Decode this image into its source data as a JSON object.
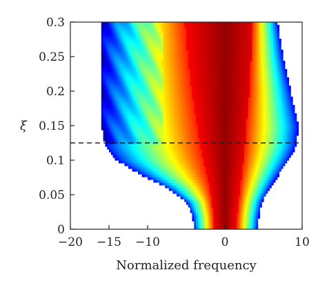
{
  "chart_data": {
    "type": "heatmap",
    "title": "",
    "xlabel": "Normalized frequency",
    "ylabel": "ξ",
    "xlim": [
      -20,
      10
    ],
    "ylim": [
      0,
      0.3
    ],
    "x_ticks": [
      -20,
      -15,
      -10,
      0,
      10
    ],
    "x_tick_labels": [
      "−20",
      "−15",
      "−10",
      "0",
      "10"
    ],
    "y_ticks": [
      0,
      0.05,
      0.1,
      0.15,
      0.2,
      0.25,
      0.3
    ],
    "y_tick_labels": [
      "0",
      "0.05",
      "0.1",
      "0.15",
      "0.2",
      "0.25",
      "0.3"
    ],
    "colormap": "jet",
    "background_color": "#ffffff",
    "reference_line": {
      "y": 0.125,
      "style": "dashed",
      "color": "#222222"
    },
    "spectral_envelope": [
      {
        "xi": 0.0,
        "left_edge": -4.0,
        "right_edge": 4.2,
        "red_left": -1.4,
        "red_right": 1.5
      },
      {
        "xi": 0.02,
        "left_edge": -4.2,
        "right_edge": 4.4,
        "red_left": -1.5,
        "red_right": 1.6
      },
      {
        "xi": 0.04,
        "left_edge": -5.0,
        "right_edge": 4.8,
        "red_left": -1.7,
        "red_right": 1.8
      },
      {
        "xi": 0.06,
        "left_edge": -7.5,
        "right_edge": 5.8,
        "red_left": -2.0,
        "red_right": 2.0
      },
      {
        "xi": 0.08,
        "left_edge": -11.0,
        "right_edge": 7.0,
        "red_left": -2.4,
        "red_right": 2.2
      },
      {
        "xi": 0.1,
        "left_edge": -14.0,
        "right_edge": 8.2,
        "red_left": -2.8,
        "red_right": 2.4
      },
      {
        "xi": 0.12,
        "left_edge": -15.5,
        "right_edge": 9.2,
        "red_left": -3.2,
        "red_right": 2.6
      },
      {
        "xi": 0.15,
        "left_edge": -16.0,
        "right_edge": 9.5,
        "red_left": -3.6,
        "red_right": 2.8
      },
      {
        "xi": 0.2,
        "left_edge": -16.0,
        "right_edge": 8.5,
        "red_left": -4.3,
        "red_right": 3.2
      },
      {
        "xi": 0.25,
        "left_edge": -16.0,
        "right_edge": 7.5,
        "red_left": -4.8,
        "red_right": 3.4
      },
      {
        "xi": 0.3,
        "left_edge": -16.0,
        "right_edge": 6.8,
        "red_left": -5.2,
        "red_right": 3.6
      }
    ]
  }
}
